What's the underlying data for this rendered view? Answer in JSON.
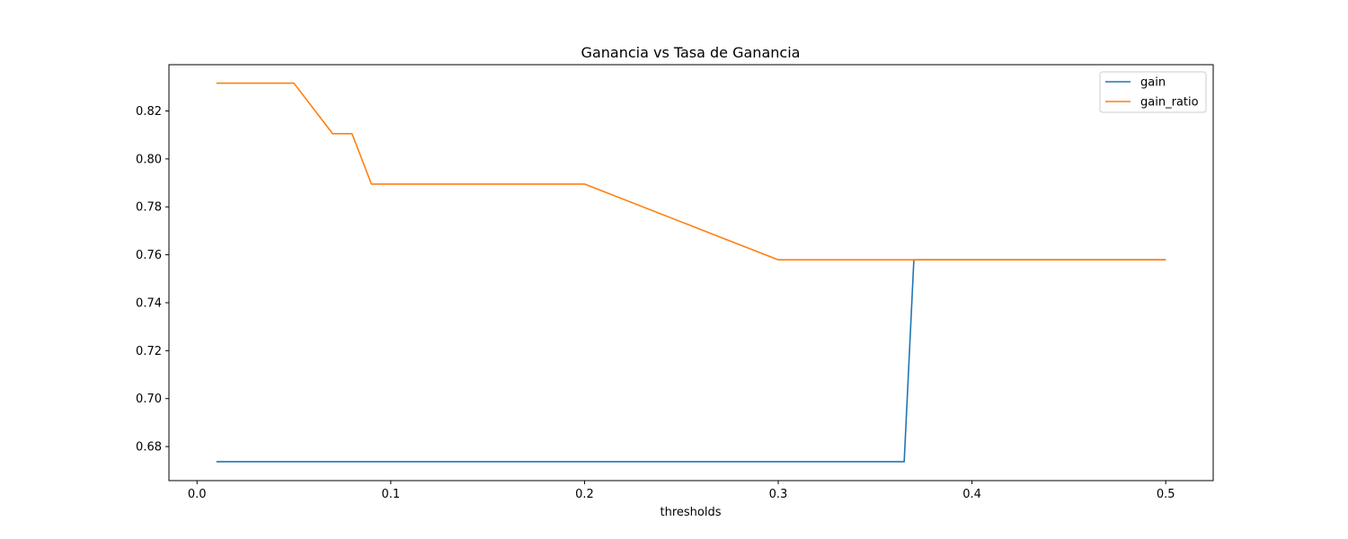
{
  "chart_data": {
    "type": "line",
    "title": "Ganancia vs Tasa de Ganancia",
    "xlabel": "thresholds",
    "ylabel": "",
    "xlim": [
      -0.0145,
      0.5245
    ],
    "ylim": [
      0.6658,
      0.8393
    ],
    "xticks": [
      0.0,
      0.1,
      0.2,
      0.3,
      0.4,
      0.5
    ],
    "xtick_labels": [
      "0.0",
      "0.1",
      "0.2",
      "0.3",
      "0.4",
      "0.5"
    ],
    "yticks": [
      0.68,
      0.7,
      0.72,
      0.74,
      0.76,
      0.78,
      0.8,
      0.82
    ],
    "ytick_labels": [
      "0.68",
      "0.70",
      "0.72",
      "0.74",
      "0.76",
      "0.78",
      "0.80",
      "0.82"
    ],
    "grid": false,
    "legend": "top-right",
    "series": [
      {
        "name": "gain",
        "color": "#1f77b4",
        "x": [
          0.01,
          0.365,
          0.37,
          0.5
        ],
        "y": [
          0.6737,
          0.6737,
          0.7579,
          0.7579
        ]
      },
      {
        "name": "gain_ratio",
        "color": "#ff7f0e",
        "x": [
          0.01,
          0.05,
          0.07,
          0.08,
          0.09,
          0.2,
          0.3,
          0.5
        ],
        "y": [
          0.8316,
          0.8316,
          0.8105,
          0.8105,
          0.7895,
          0.7895,
          0.7579,
          0.7579
        ]
      }
    ]
  }
}
